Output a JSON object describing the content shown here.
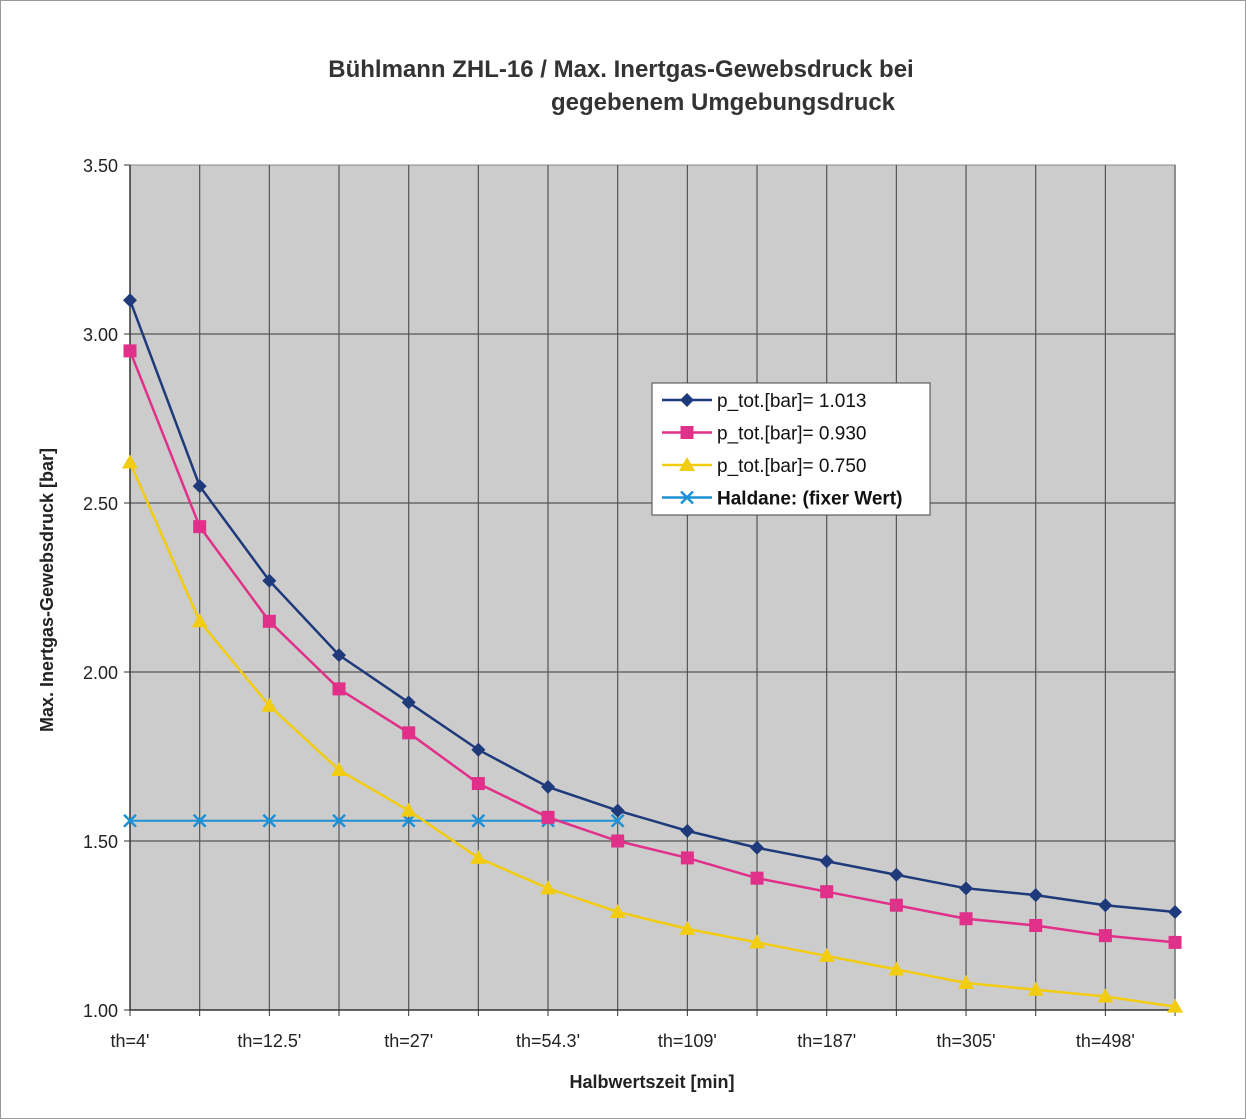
{
  "chart_data": {
    "type": "line",
    "title_line1": "Bühlmann ZHL-16 / Max. Inertgas-Gewebsdruck bei",
    "title_line2": "gegebenem Umgebungsdruck",
    "xlabel": "Halbwertszeit [min]",
    "ylabel": "Max. Inertgas-Gewebsdruck [bar]",
    "ylim": [
      1.0,
      3.5
    ],
    "y_ticks": [
      "1.00",
      "1.50",
      "2.00",
      "2.50",
      "3.00",
      "3.50"
    ],
    "x_tick_labels": [
      {
        "index": 0,
        "label": "th=4'"
      },
      {
        "index": 2,
        "label": "th=12.5'"
      },
      {
        "index": 4,
        "label": "th=27'"
      },
      {
        "index": 6,
        "label": "th=54.3'"
      },
      {
        "index": 8,
        "label": "th=109'"
      },
      {
        "index": 10,
        "label": "th=187'"
      },
      {
        "index": 12,
        "label": "th=305'"
      },
      {
        "index": 14,
        "label": "th=498'"
      }
    ],
    "point_count": 16,
    "grid": true,
    "legend_position": "center-right",
    "series": [
      {
        "name": "p_tot.[bar]= 1.013",
        "color": "#1f3a7a",
        "marker": "diamond",
        "values": [
          3.1,
          2.55,
          2.27,
          2.05,
          1.91,
          1.77,
          1.66,
          1.59,
          1.53,
          1.48,
          1.44,
          1.4,
          1.36,
          1.34,
          1.31,
          1.29
        ]
      },
      {
        "name": "p_tot.[bar]= 0.930",
        "color": "#e0308a",
        "marker": "square",
        "values": [
          2.95,
          2.43,
          2.15,
          1.95,
          1.82,
          1.67,
          1.57,
          1.5,
          1.45,
          1.39,
          1.35,
          1.31,
          1.27,
          1.25,
          1.22,
          1.2
        ]
      },
      {
        "name": "p_tot.[bar]= 0.750",
        "color": "#f2cc10",
        "marker": "triangle",
        "values": [
          2.62,
          2.15,
          1.9,
          1.71,
          1.59,
          1.45,
          1.36,
          1.29,
          1.24,
          1.2,
          1.16,
          1.12,
          1.08,
          1.06,
          1.04,
          1.01
        ]
      },
      {
        "name": "Haldane: (fixer Wert)",
        "color": "#1e90d6",
        "marker": "x",
        "values": [
          1.56,
          1.56,
          1.56,
          1.56,
          1.56,
          1.56,
          1.56,
          1.56
        ]
      }
    ]
  }
}
